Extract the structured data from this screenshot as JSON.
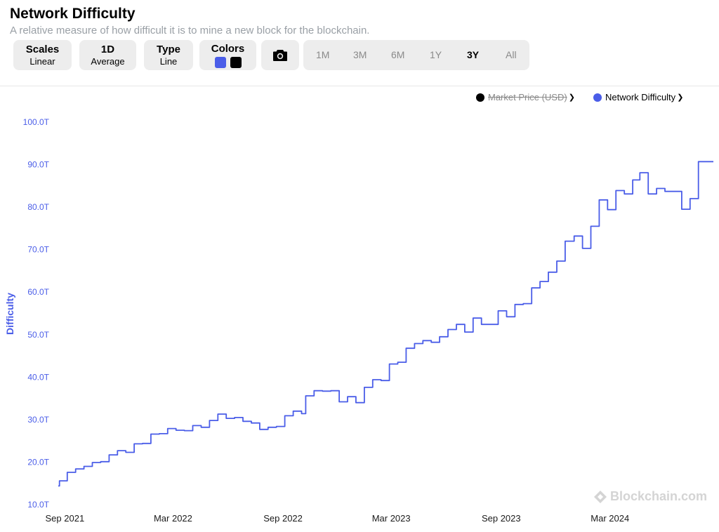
{
  "header": {
    "title": "Network Difficulty",
    "subtitle": "A relative measure of how difficult it is to mine a new block for the blockchain."
  },
  "toolbar": {
    "scales": {
      "label": "Scales",
      "value": "Linear"
    },
    "interval": {
      "label": "1D",
      "value": "Average"
    },
    "type": {
      "label": "Type",
      "value": "Line"
    },
    "colors": {
      "label": "Colors",
      "swatch1": "#4a5de8",
      "swatch2": "#000000"
    },
    "screenshot_icon": "camera-icon",
    "ranges": [
      "1M",
      "3M",
      "6M",
      "1Y",
      "3Y",
      "All"
    ],
    "active_range": "3Y"
  },
  "legend": {
    "market_price": {
      "label": "Market Price (USD)",
      "color": "#000000",
      "enabled": false
    },
    "network_difficulty": {
      "label": "Network Difficulty",
      "color": "#4a5de8",
      "enabled": true
    }
  },
  "watermark": "Blockchain.com",
  "chart_data": {
    "type": "line",
    "title": "Network Difficulty",
    "subtitle": "A relative measure of how difficult it is to mine a new block for the blockchain.",
    "ylabel": "Difficulty",
    "xlabel": "",
    "ylim": [
      10,
      100
    ],
    "yticks": [
      "10.0T",
      "20.0T",
      "30.0T",
      "40.0T",
      "50.0T",
      "60.0T",
      "70.0T",
      "80.0T",
      "90.0T",
      "100.0T"
    ],
    "xlim": [
      "2021-08-21",
      "2024-08-21"
    ],
    "xticks": [
      {
        "date": "2021-09-01",
        "label": "Sep 2021"
      },
      {
        "date": "2022-03-01",
        "label": "Mar 2022"
      },
      {
        "date": "2022-09-01",
        "label": "Sep 2022"
      },
      {
        "date": "2023-03-01",
        "label": "Mar 2023"
      },
      {
        "date": "2023-09-01",
        "label": "Sep 2023"
      },
      {
        "date": "2024-03-01",
        "label": "Mar 2024"
      }
    ],
    "grid": false,
    "series": [
      {
        "name": "Network Difficulty",
        "color": "#4a5de8",
        "unit": "T",
        "points": [
          [
            "2021-08-21",
            14.4
          ],
          [
            "2021-08-23",
            15.6
          ],
          [
            "2021-09-05",
            17.6
          ],
          [
            "2021-09-19",
            18.4
          ],
          [
            "2021-10-03",
            19.0
          ],
          [
            "2021-10-17",
            19.9
          ],
          [
            "2021-10-31",
            20.1
          ],
          [
            "2021-11-14",
            21.7
          ],
          [
            "2021-11-28",
            22.7
          ],
          [
            "2021-12-12",
            22.3
          ],
          [
            "2021-12-26",
            24.3
          ],
          [
            "2022-01-09",
            24.4
          ],
          [
            "2022-01-23",
            26.6
          ],
          [
            "2022-02-06",
            26.7
          ],
          [
            "2022-02-20",
            27.9
          ],
          [
            "2022-03-06",
            27.5
          ],
          [
            "2022-03-20",
            27.4
          ],
          [
            "2022-04-03",
            28.6
          ],
          [
            "2022-04-17",
            28.2
          ],
          [
            "2022-05-01",
            29.8
          ],
          [
            "2022-05-15",
            31.3
          ],
          [
            "2022-05-29",
            30.3
          ],
          [
            "2022-06-12",
            30.5
          ],
          [
            "2022-06-26",
            29.6
          ],
          [
            "2022-07-10",
            29.2
          ],
          [
            "2022-07-24",
            27.7
          ],
          [
            "2022-08-07",
            28.2
          ],
          [
            "2022-08-21",
            28.4
          ],
          [
            "2022-09-04",
            30.9
          ],
          [
            "2022-09-18",
            32.0
          ],
          [
            "2022-10-02",
            31.4
          ],
          [
            "2022-10-09",
            35.6
          ],
          [
            "2022-10-23",
            36.8
          ],
          [
            "2022-11-06",
            36.7
          ],
          [
            "2022-11-20",
            36.8
          ],
          [
            "2022-12-04",
            34.2
          ],
          [
            "2022-12-18",
            35.4
          ],
          [
            "2023-01-01",
            34.0
          ],
          [
            "2023-01-15",
            37.6
          ],
          [
            "2023-01-29",
            39.4
          ],
          [
            "2023-02-12",
            39.2
          ],
          [
            "2023-02-26",
            43.1
          ],
          [
            "2023-03-12",
            43.5
          ],
          [
            "2023-03-26",
            46.8
          ],
          [
            "2023-04-09",
            47.9
          ],
          [
            "2023-04-23",
            48.6
          ],
          [
            "2023-05-07",
            48.2
          ],
          [
            "2023-05-21",
            49.5
          ],
          [
            "2023-06-04",
            51.2
          ],
          [
            "2023-06-18",
            52.4
          ],
          [
            "2023-07-02",
            50.6
          ],
          [
            "2023-07-16",
            53.9
          ],
          [
            "2023-07-30",
            52.4
          ],
          [
            "2023-08-27",
            55.6
          ],
          [
            "2023-09-10",
            54.2
          ],
          [
            "2023-09-24",
            57.1
          ],
          [
            "2023-10-08",
            57.3
          ],
          [
            "2023-10-22",
            61.0
          ],
          [
            "2023-11-05",
            62.5
          ],
          [
            "2023-11-19",
            64.7
          ],
          [
            "2023-12-03",
            67.3
          ],
          [
            "2023-12-17",
            72.0
          ],
          [
            "2024-01-01",
            73.2
          ],
          [
            "2024-01-15",
            70.3
          ],
          [
            "2024-01-29",
            75.5
          ],
          [
            "2024-02-12",
            81.7
          ],
          [
            "2024-02-26",
            79.4
          ],
          [
            "2024-03-11",
            83.9
          ],
          [
            "2024-03-25",
            83.1
          ],
          [
            "2024-04-08",
            86.4
          ],
          [
            "2024-04-20",
            88.1
          ],
          [
            "2024-05-04",
            83.1
          ],
          [
            "2024-05-18",
            84.4
          ],
          [
            "2024-06-01",
            83.7
          ],
          [
            "2024-06-29",
            79.5
          ],
          [
            "2024-07-13",
            82.0
          ],
          [
            "2024-07-27",
            90.7
          ],
          [
            "2024-08-21",
            90.7
          ]
        ]
      }
    ]
  }
}
